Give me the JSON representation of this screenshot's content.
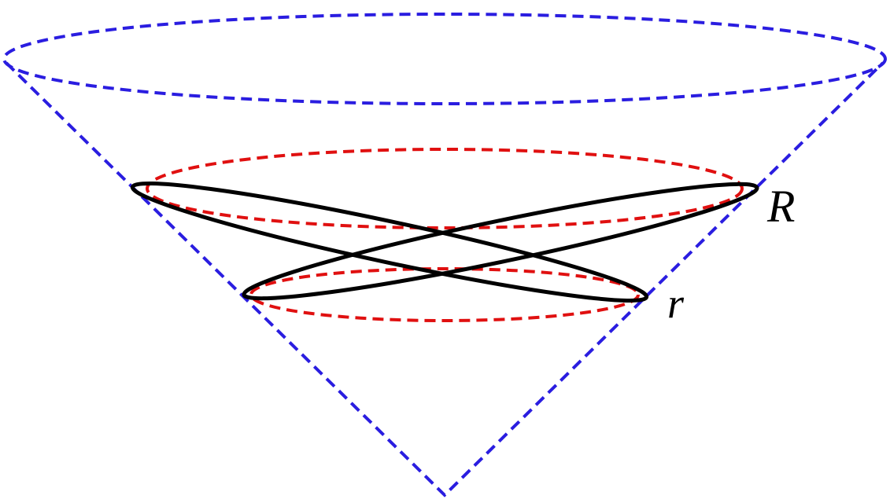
{
  "labels": {
    "outer": "R",
    "inner": "r"
  }
}
